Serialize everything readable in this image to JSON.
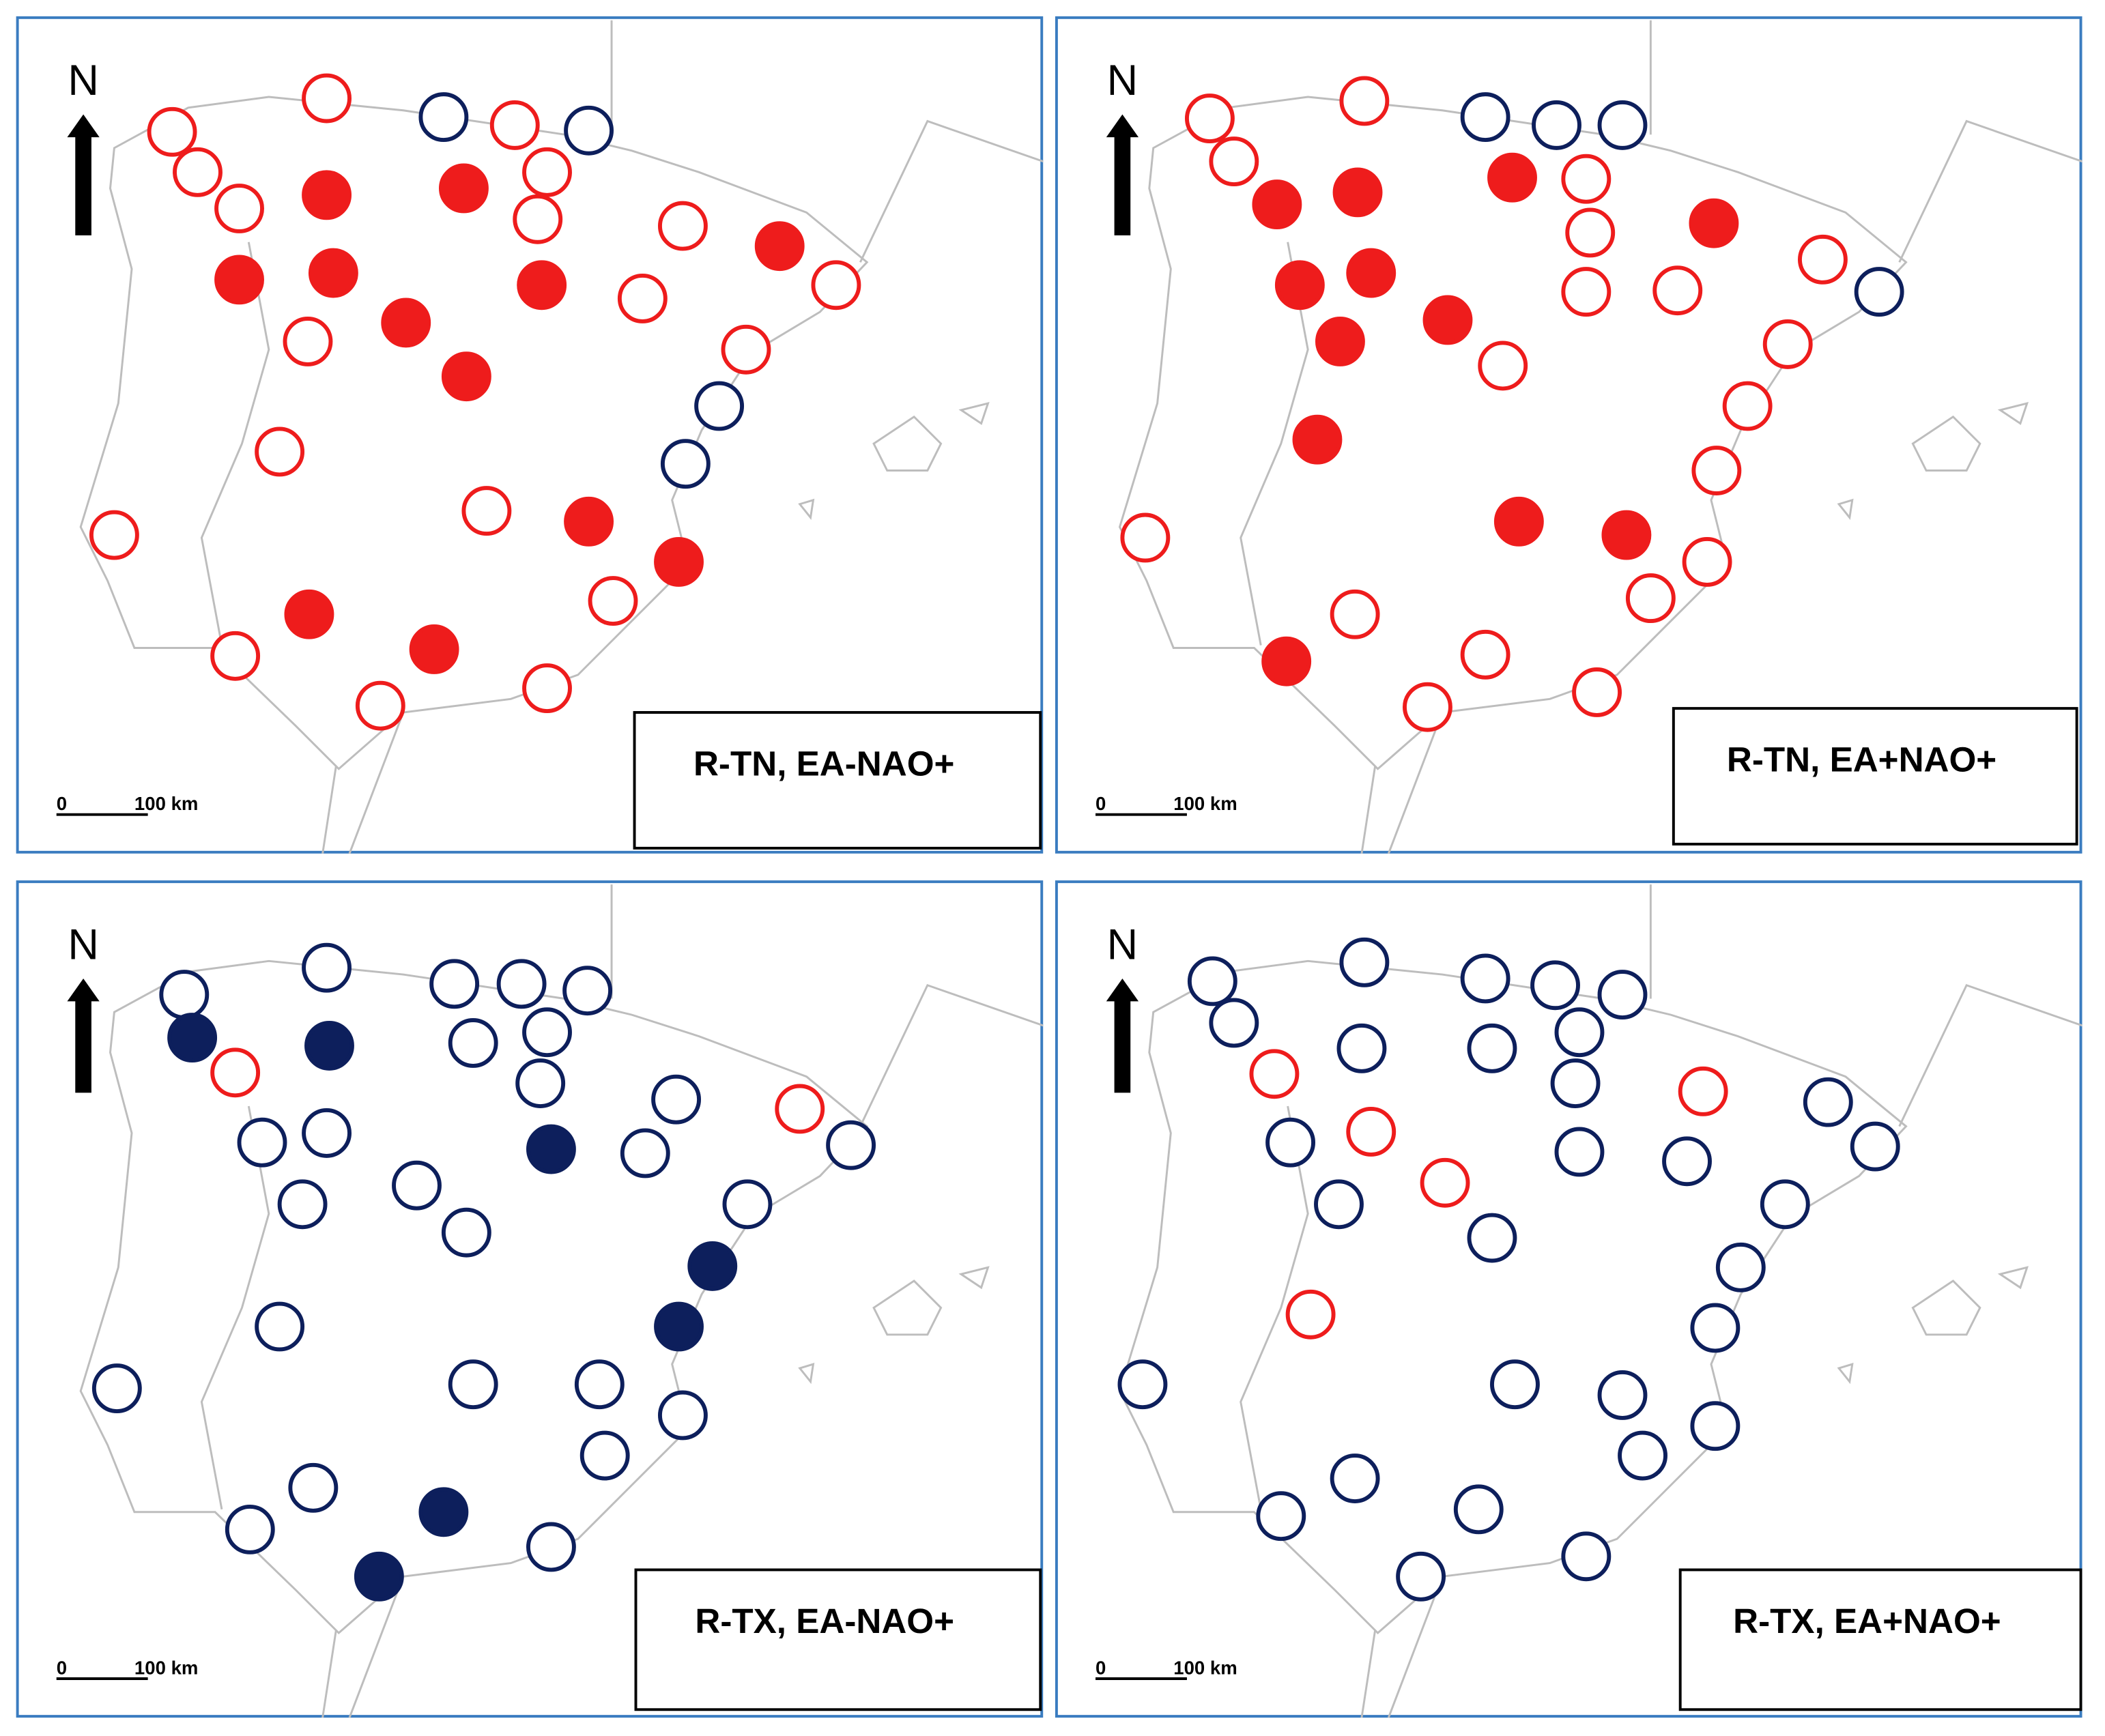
{
  "panels": [
    {
      "label": "R-TN, EA-NAO+"
    },
    {
      "label": "R-TN, EA+NAO+"
    },
    {
      "label": "R-TX, EA-NAO+"
    },
    {
      "label": "R-TX, EA+NAO+"
    }
  ],
  "north": "N",
  "scale": {
    "zero": "0",
    "distance": "100 km"
  }
}
